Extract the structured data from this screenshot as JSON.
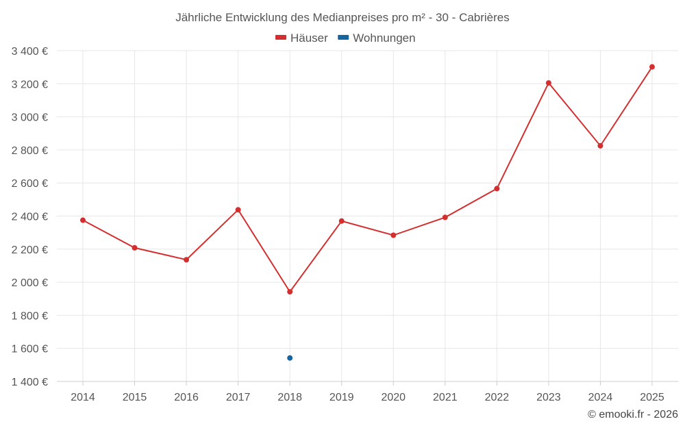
{
  "chart_data": {
    "type": "line",
    "title": "Jährliche Entwicklung des Medianpreises pro m² - 30 - Cabrières",
    "categories": [
      "2014",
      "2015",
      "2016",
      "2017",
      "2018",
      "2019",
      "2020",
      "2021",
      "2022",
      "2023",
      "2024",
      "2025"
    ],
    "series": [
      {
        "name": "Häuser",
        "color": "#d32f2f",
        "values": [
          2375,
          2208,
          2136,
          2438,
          1942,
          2370,
          2284,
          2392,
          2566,
          3205,
          2825,
          3302
        ]
      },
      {
        "name": "Wohnungen",
        "color": "#1565a0",
        "values": [
          null,
          null,
          null,
          null,
          1542,
          null,
          null,
          null,
          null,
          null,
          null,
          null
        ]
      }
    ],
    "ylim": [
      1400,
      3400
    ],
    "yticks": [
      1400,
      1600,
      1800,
      2000,
      2200,
      2400,
      2600,
      2800,
      3000,
      3200,
      3400
    ],
    "ytick_labels": [
      "1 400 €",
      "1 600 €",
      "1 800 €",
      "2 000 €",
      "2 200 €",
      "2 400 €",
      "2 600 €",
      "2 800 €",
      "3 000 €",
      "3 200 €",
      "3 400 €"
    ],
    "xlabel": "",
    "ylabel": "",
    "grid": true,
    "legend_position": "top-center"
  },
  "credit": "© emooki.fr - 2026"
}
